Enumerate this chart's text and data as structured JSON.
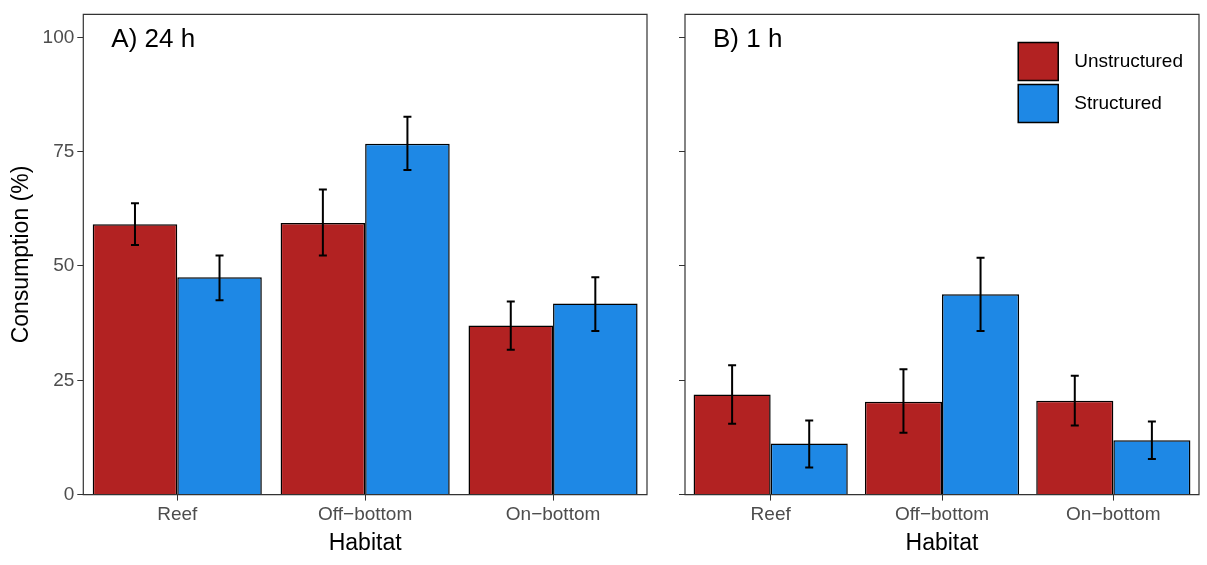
{
  "chart_data": [
    {
      "type": "bar",
      "title": "A) 24 h",
      "xlabel": "Habitat",
      "ylabel": "Consumption (%)",
      "categories": [
        "Reef",
        "Off−bottom",
        "On−bottom"
      ],
      "series": [
        {
          "color": "#b22222",
          "values": [
            59.1,
            59.4,
            37.0
          ],
          "errors": [
            [
              54.6,
              63.7
            ],
            [
              52.3,
              66.7
            ],
            [
              31.7,
              42.2
            ]
          ]
        },
        {
          "color": "#1e88e5",
          "values": [
            47.5,
            76.7,
            41.8
          ],
          "errors": [
            [
              42.5,
              52.3
            ],
            [
              71.0,
              82.6
            ],
            [
              35.8,
              47.5
            ]
          ]
        }
      ],
      "ylim": [
        0,
        105
      ],
      "yticks": [
        0,
        25,
        50,
        75,
        100
      ],
      "grid": false,
      "legend": false
    },
    {
      "type": "bar",
      "title": "B) 1 h",
      "xlabel": "Habitat",
      "categories": [
        "Reef",
        "Off−bottom",
        "On−bottom"
      ],
      "series": [
        {
          "name": "Unstructured",
          "color": "#b22222",
          "values": [
            21.9,
            20.3,
            20.5
          ],
          "errors": [
            [
              15.5,
              28.3
            ],
            [
              13.5,
              27.4
            ],
            [
              15.1,
              26.0
            ]
          ]
        },
        {
          "name": "Structured",
          "color": "#1e88e5",
          "values": [
            11.2,
            43.8,
            11.9
          ],
          "errors": [
            [
              5.9,
              16.2
            ],
            [
              35.8,
              51.8
            ],
            [
              7.8,
              16.0
            ]
          ]
        }
      ],
      "ylim": [
        0,
        105
      ],
      "yticks": [
        0,
        25,
        50,
        75,
        100
      ],
      "grid": false,
      "legend": "top right",
      "tick_labels": "x"
    }
  ]
}
